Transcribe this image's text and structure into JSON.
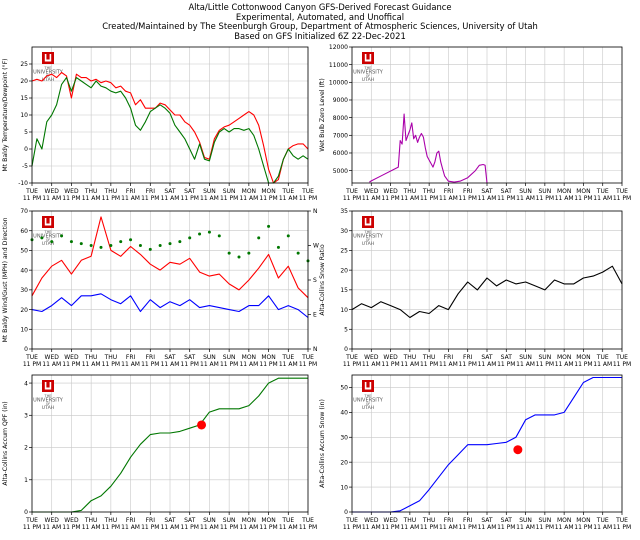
{
  "header": {
    "line1": "Alta/Little Cottonwood Canyon GFS-Derived Forecast Guidance",
    "line2": "Experimental, Automated, and Unoffical",
    "line3": "Created/Maintained by The Steenburgh Group, Department of Atmospheric Sciences, University of Utah",
    "line4": "Based on GFS Initialized 6Z 22-Dec-2021"
  },
  "logo": {
    "text_top": "THE",
    "text_mid": "UNIVERSITY",
    "text_of": "OF",
    "text_bottom": "UTAH",
    "brand_color": "#cc0000"
  },
  "time_axis": {
    "day_labels": [
      "TUE",
      "WED",
      "WED",
      "THU",
      "THU",
      "FRI",
      "FRI",
      "SAT",
      "SAT",
      "SUN",
      "SUN",
      "MON",
      "MON",
      "TUE",
      "TUE"
    ],
    "time_labels": [
      "11 PM",
      "11 AM",
      "11 PM",
      "11 AM",
      "11 PM",
      "11 AM",
      "11 PM",
      "11 AM",
      "11 PM",
      "11 AM",
      "11 PM",
      "11 AM",
      "11 PM",
      "11 AM",
      "11 PM"
    ]
  },
  "chart_data": [
    {
      "type": "line",
      "ylabel": "Mt Baldy Temperature/Dewpoint (°F)",
      "ylim": [
        -10,
        30
      ],
      "yticks": [
        -10,
        -5,
        0,
        5,
        10,
        15,
        20,
        25
      ],
      "grid": true,
      "x": [
        0,
        0.25,
        0.5,
        0.75,
        1,
        1.25,
        1.5,
        1.75,
        2,
        2.25,
        2.5,
        2.75,
        3,
        3.25,
        3.5,
        3.75,
        4,
        4.25,
        4.5,
        4.75,
        5,
        5.25,
        5.5,
        5.75,
        6,
        6.25,
        6.5,
        6.75,
        7,
        7.25,
        7.5,
        7.75,
        8,
        8.25,
        8.5,
        8.75,
        9,
        9.25,
        9.5,
        9.75,
        10,
        10.25,
        10.5,
        10.75,
        11,
        11.25,
        11.5,
        11.75,
        12,
        12.25,
        12.5,
        12.75,
        13,
        13.25,
        13.5,
        13.75,
        14
      ],
      "series": [
        {
          "color": "#ff0000",
          "values": [
            20,
            20.5,
            20,
            21.5,
            22,
            21,
            22.5,
            21.5,
            15,
            22,
            21,
            21,
            20,
            20.5,
            19.5,
            20,
            19.5,
            18,
            18.5,
            17,
            16.5,
            13,
            14.5,
            12,
            12,
            12,
            13.5,
            13,
            11.5,
            10,
            10,
            8,
            7,
            5,
            2,
            -2.5,
            -3,
            3,
            5.5,
            6.5,
            7,
            8,
            9,
            10,
            11,
            10,
            7,
            1,
            -6,
            -10,
            -9,
            -3,
            0,
            1,
            1.5,
            1.5,
            0
          ]
        },
        {
          "color": "#007700",
          "values": [
            -5,
            3,
            0,
            8,
            10,
            13,
            19,
            21,
            17,
            21,
            20,
            19,
            18,
            20,
            18.5,
            18,
            17,
            16.5,
            17,
            15,
            12,
            7,
            5.5,
            8,
            11,
            12,
            13,
            12,
            10.5,
            7,
            5,
            3,
            0,
            -3,
            1.5,
            -3,
            -3.5,
            2,
            5,
            6,
            5,
            6,
            6,
            5.5,
            6,
            4,
            0,
            -5,
            -10,
            -10,
            -8,
            -3,
            0,
            -2,
            -3,
            -2,
            -3
          ]
        }
      ]
    },
    {
      "type": "line",
      "ylabel": "Wet Bulb Zero Level (ft)",
      "ylim": [
        4300,
        12000
      ],
      "yticks": [
        5000,
        6000,
        7000,
        8000,
        9000,
        10000,
        11000,
        12000
      ],
      "grid": true,
      "x": [
        0.9,
        1.0,
        2.4,
        2.5,
        2.6,
        2.7,
        2.8,
        2.9,
        3.0,
        3.1,
        3.2,
        3.3,
        3.4,
        3.5,
        3.6,
        3.7,
        3.8,
        3.9,
        4.0,
        4.1,
        4.2,
        4.3,
        4.4,
        4.5,
        4.6,
        4.7,
        4.8,
        5.0,
        5.3,
        5.6,
        6.0,
        6.4,
        6.6,
        6.8,
        6.9,
        7.0
      ],
      "series": [
        {
          "color": "#aa00aa",
          "values": [
            4350,
            4420,
            5200,
            6700,
            6500,
            8200,
            6700,
            7000,
            7300,
            7700,
            6800,
            7000,
            6600,
            6900,
            7100,
            6900,
            6300,
            5800,
            5600,
            5400,
            5200,
            5500,
            6000,
            6100,
            5500,
            5100,
            4700,
            4400,
            4350,
            4400,
            4600,
            5000,
            5300,
            5350,
            5300,
            4300
          ]
        }
      ]
    },
    {
      "type": "line",
      "ylabel": "Mt Baldy Wind/Gust (MPH) and Direction",
      "ylim": [
        0,
        70
      ],
      "yticks": [
        0,
        10,
        20,
        30,
        40,
        50,
        60,
        70
      ],
      "y2ticks": [
        "N",
        "E",
        "S",
        "W",
        "N"
      ],
      "grid": true,
      "x": [
        0,
        0.5,
        1,
        1.5,
        2,
        2.5,
        3,
        3.5,
        4,
        4.5,
        5,
        5.5,
        6,
        6.5,
        7,
        7.5,
        8,
        8.5,
        9,
        9.5,
        10,
        10.5,
        11,
        11.5,
        12,
        12.5,
        13,
        13.5,
        14
      ],
      "series": [
        {
          "name": "gust",
          "color": "#ff0000",
          "values": [
            27,
            36,
            42,
            45,
            38,
            45,
            47,
            67,
            50,
            47,
            52,
            48,
            43,
            40,
            44,
            43,
            46,
            39,
            37,
            38,
            33,
            30,
            35,
            41,
            48,
            36,
            42,
            31,
            26
          ]
        },
        {
          "name": "wind",
          "color": "#0000ff",
          "values": [
            20,
            19,
            22,
            26,
            22,
            27,
            27,
            28,
            25,
            23,
            27,
            19,
            25,
            21,
            24,
            22,
            25,
            21,
            22,
            21,
            20,
            19,
            22,
            22,
            27,
            20,
            22,
            20,
            16
          ]
        },
        {
          "name": "direction",
          "color": "#007700",
          "values": [
            285,
            290,
            280,
            295,
            280,
            275,
            270,
            265,
            270,
            280,
            285,
            270,
            260,
            270,
            275,
            280,
            290,
            300,
            305,
            295,
            250,
            240,
            250,
            290,
            320,
            265,
            295,
            250,
            230
          ]
        }
      ]
    },
    {
      "type": "line",
      "ylabel": "Alta-Collins Snow Ratio",
      "ylim": [
        0,
        35
      ],
      "yticks": [
        0,
        5,
        10,
        15,
        20,
        25,
        30,
        35
      ],
      "grid": true,
      "x": [
        0,
        0.5,
        1,
        1.5,
        2,
        2.5,
        3,
        3.5,
        4,
        4.5,
        5,
        5.5,
        6,
        6.5,
        7,
        7.5,
        8,
        8.5,
        9,
        9.5,
        10,
        10.5,
        11,
        11.5,
        12,
        12.5,
        13,
        13.5,
        14
      ],
      "series": [
        {
          "color": "#000000",
          "values": [
            10,
            11.5,
            10.5,
            12,
            11,
            10,
            8,
            9.5,
            9,
            11,
            10,
            14,
            17,
            15,
            18,
            16,
            17.5,
            16.5,
            17,
            16,
            15,
            17.5,
            16.5,
            16.5,
            18,
            18.5,
            19.5,
            21,
            16.5
          ]
        }
      ]
    },
    {
      "type": "line",
      "ylabel": "Alta-Collins Accum QPF (in)",
      "ylim": [
        0,
        4.25
      ],
      "yticks": [
        0,
        1,
        2,
        3,
        4
      ],
      "grid": true,
      "x": [
        0,
        0.5,
        1,
        1.5,
        2,
        2.5,
        3,
        3.5,
        4,
        4.5,
        5,
        5.5,
        6,
        6.5,
        7,
        7.5,
        8,
        8.5,
        9,
        9.5,
        10,
        10.5,
        11,
        11.5,
        12,
        12.5,
        13,
        13.5,
        14
      ],
      "series": [
        {
          "color": "#007700",
          "values": [
            0,
            0,
            0,
            0,
            0,
            0.05,
            0.35,
            0.5,
            0.8,
            1.2,
            1.7,
            2.1,
            2.4,
            2.45,
            2.45,
            2.5,
            2.6,
            2.7,
            3.1,
            3.2,
            3.2,
            3.2,
            3.3,
            3.6,
            4.0,
            4.15,
            4.15,
            4.15,
            4.15
          ]
        }
      ],
      "observation": {
        "x": 8.6,
        "value": 2.7,
        "color": "#ff0000"
      }
    },
    {
      "type": "line",
      "ylabel": "Alta-Collins Accum Snow (in)",
      "ylim": [
        0,
        55
      ],
      "yticks": [
        0,
        10,
        20,
        30,
        40,
        50
      ],
      "grid": true,
      "x": [
        0,
        0.5,
        1,
        1.5,
        2,
        2.5,
        3,
        3.5,
        4,
        4.5,
        5,
        5.5,
        6,
        6.5,
        7,
        7.5,
        8,
        8.5,
        9,
        9.5,
        10,
        10.5,
        11,
        11.5,
        12,
        12.5,
        13,
        13.5,
        14
      ],
      "series": [
        {
          "color": "#0000ff",
          "values": [
            0,
            0,
            0,
            0,
            0,
            0.5,
            2.5,
            4.5,
            9,
            14,
            19,
            23,
            27,
            27,
            27,
            27.5,
            28,
            30,
            37,
            39,
            39,
            39,
            40,
            46,
            52,
            54,
            54,
            54,
            54
          ]
        }
      ],
      "observation": {
        "x": 8.6,
        "value": 25,
        "color": "#ff0000"
      }
    }
  ]
}
